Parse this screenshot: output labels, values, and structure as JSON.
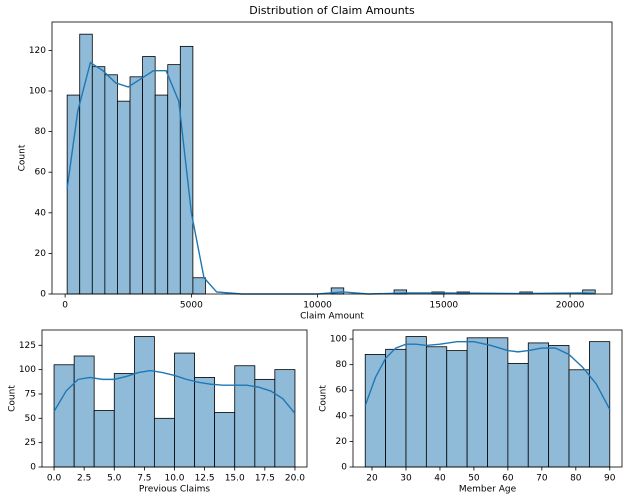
{
  "chart_data": [
    {
      "type": "histogram",
      "title": "Distribution of Claim Amounts",
      "xlabel": "Claim Amount",
      "ylabel": "Count",
      "bins": [
        80,
        578,
        1076,
        1574,
        2072,
        2570,
        3068,
        3566,
        4064,
        4562,
        5060,
        5558,
        6056,
        6554,
        7052,
        7550,
        8048,
        8546,
        9044,
        9542,
        10040,
        10538,
        11036,
        11534,
        12032,
        12530,
        13028,
        13526,
        14024,
        14522,
        15020,
        15518,
        16016,
        16514,
        17012,
        17510,
        18008,
        18506,
        19004,
        19502,
        20000,
        20498,
        20996
      ],
      "counts": [
        98,
        128,
        112,
        108,
        95,
        107,
        117,
        98,
        113,
        122,
        8,
        0,
        0,
        0,
        0,
        0,
        0,
        0,
        0,
        0,
        0,
        3,
        0,
        0,
        0,
        0,
        2,
        0,
        0,
        1,
        0,
        1,
        0,
        0,
        0,
        0,
        1,
        0,
        0,
        0,
        0,
        2
      ],
      "color": "#8fbbd9",
      "kde": {
        "color": "#1f77b4",
        "x": [
          80,
          500,
          1000,
          1500,
          2000,
          2500,
          3000,
          3500,
          4000,
          4500,
          5000,
          5500,
          6000,
          7000,
          10000,
          11000,
          12000,
          13500,
          15000,
          18000,
          20500,
          21000
        ],
        "y": [
          52,
          90,
          114,
          110,
          104,
          102,
          106,
          110,
          110,
          95,
          40,
          8,
          1,
          0,
          0,
          1,
          0,
          0.5,
          0.5,
          0.2,
          0.5,
          0.3
        ]
      },
      "xlim": [
        -520,
        21660
      ],
      "ylim": [
        0,
        134
      ],
      "xticks": [
        0,
        5000,
        10000,
        15000,
        20000
      ],
      "yticks": [
        0,
        20,
        40,
        60,
        80,
        100,
        120
      ]
    },
    {
      "type": "histogram",
      "xlabel": "Previous Claims",
      "ylabel": "Count",
      "bins": [
        0,
        1.67,
        3.33,
        5,
        6.67,
        8.33,
        10,
        11.67,
        13.33,
        15,
        16.67,
        18.33,
        20
      ],
      "counts": [
        105,
        114,
        58,
        96,
        134,
        50,
        117,
        92,
        56,
        104,
        90,
        100
      ],
      "color": "#8fbbd9",
      "kde": {
        "color": "#1f77b4",
        "x": [
          0,
          1,
          2,
          3,
          4,
          5,
          6,
          7,
          8,
          9,
          10,
          11,
          12,
          13,
          14,
          15,
          16,
          17,
          18,
          19,
          20
        ],
        "y": [
          57,
          78,
          90,
          92,
          90,
          90,
          93,
          97,
          99,
          97,
          94,
          90,
          87,
          85,
          84,
          84,
          84,
          82,
          78,
          70,
          55
        ]
      },
      "xlim": [
        -1,
        21
      ],
      "ylim": [
        0,
        140.7
      ],
      "xticks": [
        {
          "value": 0,
          "label": "0.0"
        },
        {
          "value": 2.5,
          "label": "2.5"
        },
        {
          "value": 5,
          "label": "5.0"
        },
        {
          "value": 7.5,
          "label": "7.5"
        },
        {
          "value": 10,
          "label": "10.0"
        },
        {
          "value": 12.5,
          "label": "12.5"
        },
        {
          "value": 15,
          "label": "15.0"
        },
        {
          "value": 17.5,
          "label": "17.5"
        },
        {
          "value": 20,
          "label": "20.0"
        }
      ],
      "yticks": [
        0,
        25,
        50,
        75,
        100,
        125
      ]
    },
    {
      "type": "histogram",
      "xlabel": "Member Age",
      "ylabel": "Count",
      "bins": [
        18,
        24,
        30,
        36,
        42,
        48,
        54,
        60,
        66,
        72,
        78,
        84,
        90
      ],
      "counts": [
        88,
        92,
        102,
        94,
        91,
        101,
        101,
        81,
        97,
        95,
        76,
        98
      ],
      "color": "#8fbbd9",
      "kde": {
        "color": "#1f77b4",
        "x": [
          18,
          21,
          24,
          27,
          30,
          33,
          36,
          40,
          45,
          50,
          55,
          60,
          63,
          66,
          70,
          74,
          78,
          82,
          86,
          90
        ],
        "y": [
          48,
          70,
          85,
          93,
          96,
          96,
          95,
          96,
          98,
          98,
          95,
          91,
          90,
          91,
          93,
          93,
          88,
          78,
          65,
          45
        ]
      },
      "xlim": [
        14.4,
        93.6
      ],
      "ylim": [
        0,
        107.1
      ],
      "xticks": [
        20,
        30,
        40,
        50,
        60,
        70,
        80,
        90
      ],
      "yticks": [
        0,
        20,
        40,
        60,
        80,
        100
      ]
    }
  ]
}
